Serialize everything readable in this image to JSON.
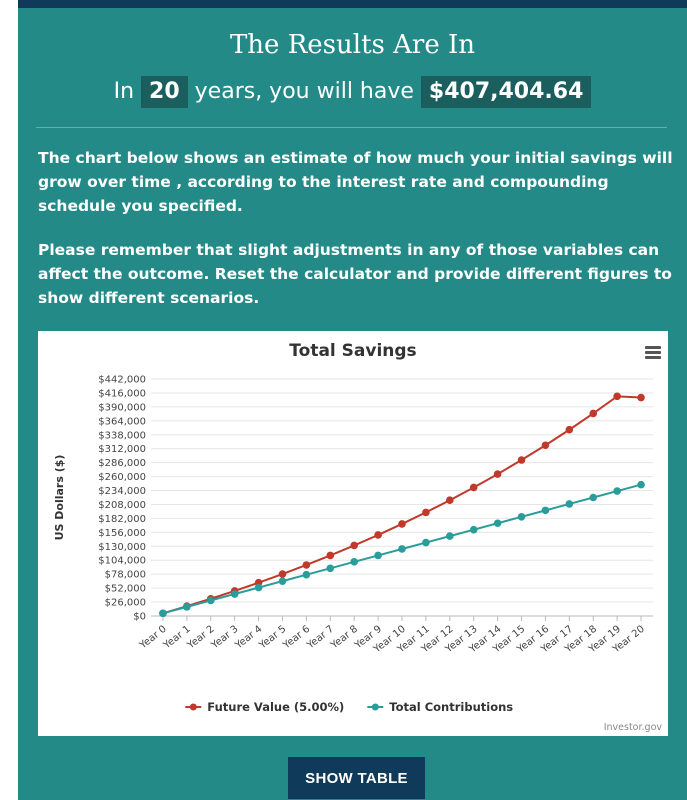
{
  "header": {
    "title": "The Results Are In",
    "prefix": "In",
    "years": "20",
    "middle": "years, you will have",
    "amount": "$407,404.64"
  },
  "paragraphs": [
    "The chart below shows an estimate of how much your initial savings will grow over time , according to the interest rate and compounding schedule you specified.",
    "Please remember that slight adjustments in any of those variables can affect the outcome. Reset the calculator and provide different figures to show different scenarios."
  ],
  "chart_menu_icon": "hamburger-menu-icon",
  "chart_data": {
    "type": "line",
    "title": "Total Savings",
    "ylabel": "US Dollars ($)",
    "xlabel": "",
    "ylim": [
      0,
      442000
    ],
    "y_ticks": [
      "$0",
      "$26,000",
      "$52,000",
      "$78,000",
      "$104,000",
      "$130,000",
      "$156,000",
      "$182,000",
      "$208,000",
      "$234,000",
      "$260,000",
      "$286,000",
      "$312,000",
      "$338,000",
      "$364,000",
      "$390,000",
      "$416,000",
      "$442,000"
    ],
    "categories": [
      "Year 0",
      "Year 1",
      "Year 2",
      "Year 3",
      "Year 4",
      "Year 5",
      "Year 6",
      "Year 7",
      "Year 8",
      "Year 9",
      "Year 10",
      "Year 11",
      "Year 12",
      "Year 13",
      "Year 14",
      "Year 15",
      "Year 16",
      "Year 17",
      "Year 18",
      "Year 19",
      "Year 20"
    ],
    "series": [
      {
        "name": "Future Value (5.00%)",
        "color": "#c0392b",
        "values": [
          5000,
          18250,
          32163,
          46771,
          62109,
          78215,
          95126,
          112882,
          131526,
          151102,
          171657,
          193240,
          215902,
          239697,
          264682,
          290916,
          318462,
          347385,
          377754,
          409642,
          407405
        ]
      },
      {
        "name": "Total Contributions",
        "color": "#2a9d9a",
        "values": [
          5000,
          17000,
          29000,
          41000,
          53000,
          65000,
          77000,
          89000,
          101000,
          113000,
          125000,
          137000,
          149000,
          161000,
          173000,
          185000,
          197000,
          209000,
          221000,
          233000,
          245000
        ]
      }
    ],
    "legend": "bottom-center",
    "grid": true,
    "credit": "Investor.gov"
  },
  "button": {
    "label": "SHOW TABLE"
  }
}
